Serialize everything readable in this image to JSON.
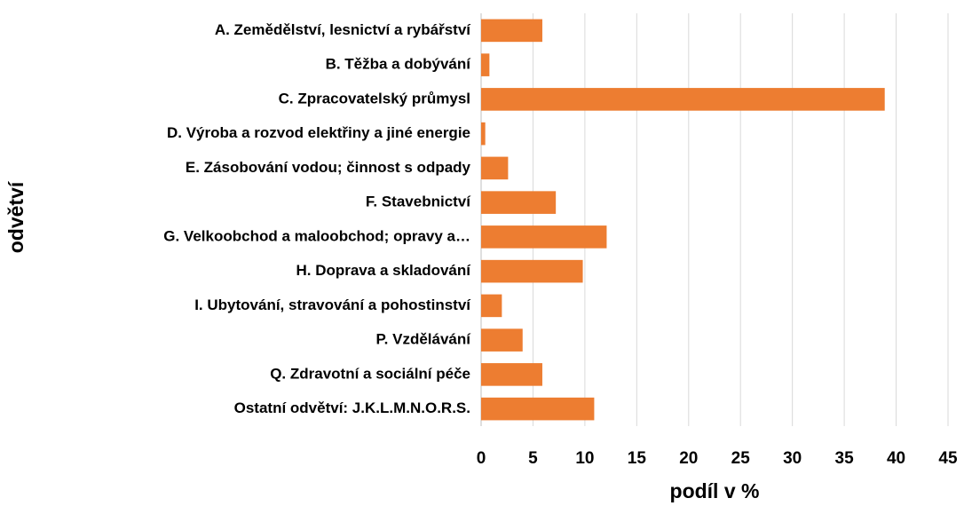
{
  "chart_data": {
    "type": "bar",
    "orientation": "horizontal",
    "categories": [
      "A. Zemědělství, lesnictví a rybářství",
      "B. Těžba a dobývání",
      "C. Zpracovatelský průmysl",
      "D. Výroba a rozvod elektřiny a jiné energie",
      "E. Zásobování vodou; činnost s odpady",
      "F. Stavebnictví",
      "G. Velkoobchod a maloobchod; opravy a…",
      "H. Doprava a skladování",
      "I. Ubytování, stravování a pohostinství",
      "P. Vzdělávání",
      "Q. Zdravotní a sociální péče",
      "Ostatní odvětví: J.K.L.M.N.O.R.S."
    ],
    "values": [
      5.9,
      0.8,
      38.9,
      0.4,
      2.6,
      7.2,
      12.1,
      9.8,
      2.0,
      4.0,
      5.9,
      10.9
    ],
    "color": "#ed7d31",
    "x_label": "podíl v %",
    "y_label": "odvětví",
    "xlim": [
      0,
      45
    ],
    "xticks": [
      0,
      5,
      10,
      15,
      20,
      25,
      30,
      35,
      40,
      45
    ],
    "grid": true
  }
}
